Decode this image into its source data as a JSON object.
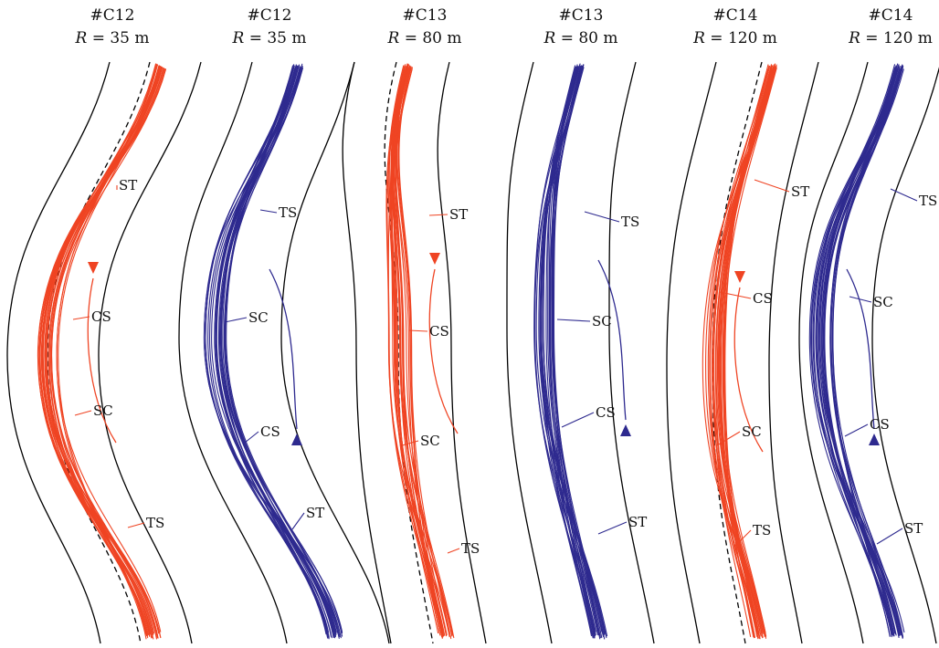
{
  "colors": {
    "red": "#ef4423",
    "blue": "#2e2a8f",
    "edge": "#000000"
  },
  "panels": [
    {
      "id": "C12",
      "title": "#C12",
      "radius_var": "R",
      "radius_value": "= 35 m",
      "color": "red",
      "labels": [
        "ST",
        "CS",
        "SC",
        "TS"
      ],
      "arrow_direction": "up"
    },
    {
      "id": "C12",
      "title": "#C12",
      "radius_var": "R",
      "radius_value": "= 35 m",
      "color": "blue",
      "labels": [
        "TS",
        "SC",
        "CS",
        "ST"
      ],
      "arrow_direction": "down"
    },
    {
      "id": "C13",
      "title": "#C13",
      "radius_var": "R",
      "radius_value": "= 80 m",
      "color": "red",
      "labels": [
        "ST",
        "CS",
        "SC",
        "TS"
      ],
      "arrow_direction": "up"
    },
    {
      "id": "C13",
      "title": "#C13",
      "radius_var": "R",
      "radius_value": "= 80 m",
      "color": "blue",
      "labels": [
        "TS",
        "SC",
        "CS",
        "ST"
      ],
      "arrow_direction": "down"
    },
    {
      "id": "C14",
      "title": "#C14",
      "radius_var": "R",
      "radius_value": "= 120 m",
      "color": "red",
      "labels": [
        "ST",
        "CS",
        "SC",
        "TS"
      ],
      "arrow_direction": "up"
    },
    {
      "id": "C14",
      "title": "#C14",
      "radius_var": "R",
      "radius_value": "= 120 m",
      "color": "blue",
      "labels": [
        "TS",
        "SC",
        "CS",
        "ST"
      ],
      "arrow_direction": "down"
    }
  ]
}
